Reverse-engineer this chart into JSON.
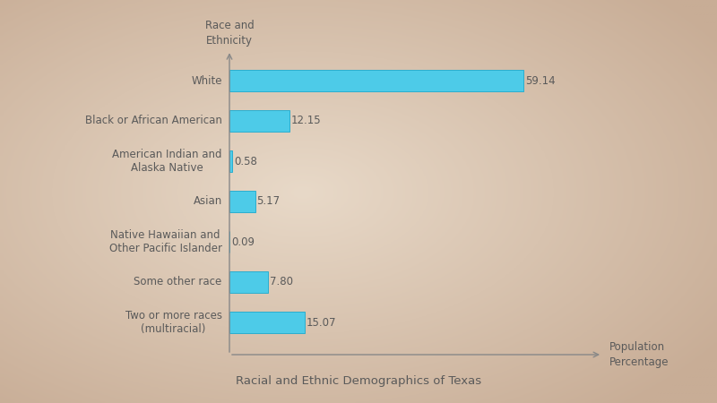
{
  "categories": [
    "White",
    "Black or African American",
    "American Indian and\nAlaska Native",
    "Asian",
    "Native Hawaiian and\nOther Pacific Islander",
    "Some other race",
    "Two or more races\n(multiracial)"
  ],
  "values": [
    59.14,
    12.15,
    0.58,
    5.17,
    0.09,
    7.8,
    15.07
  ],
  "bar_color": "#4DCBE8",
  "bar_edge_color": "#2BAECE",
  "bg_outer_color": "#C8AD96",
  "bg_inner_color": "#E8D9C8",
  "text_color": "#5A5A5A",
  "axis_color": "#888888",
  "title": "Racial and Ethnic Demographics of Texas",
  "xlabel": "Population\nPercentage",
  "ylabel": "Race and\nEthnicity",
  "xlim": [
    0,
    75
  ],
  "bar_height": 0.52,
  "label_fontsize": 8.5,
  "title_fontsize": 9.5,
  "axis_label_fontsize": 8.5,
  "value_fontsize": 8.5
}
